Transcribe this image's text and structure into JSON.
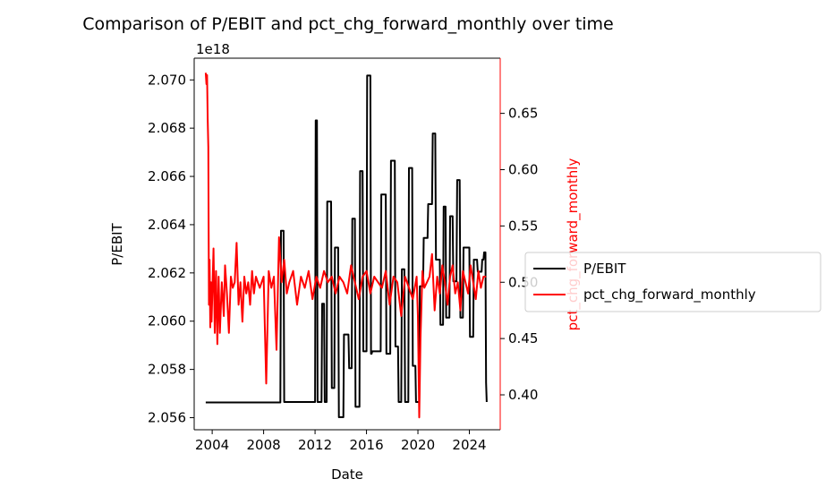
{
  "chart_data": {
    "type": "line",
    "title": "Comparison of P/EBIT and pct_chg_forward_monthly over time",
    "xlabel": "Date",
    "ylabel_left": "P/EBIT",
    "ylabel_right": "pct_chg_forward_monthly",
    "left_offset_label": "1e18",
    "x_ticks": [
      "2004",
      "2008",
      "2012",
      "2016",
      "2020",
      "2024"
    ],
    "y_left_ticks": [
      "2.056",
      "2.058",
      "2.060",
      "2.062",
      "2.064",
      "2.066",
      "2.068",
      "2.070"
    ],
    "y_right_ticks": [
      "0.40",
      "0.45",
      "0.50",
      "0.55",
      "0.60",
      "0.65"
    ],
    "xlim": [
      2002.6,
      2026.4
    ],
    "ylim_left": [
      2.0555,
      2.0709
    ],
    "ylim_right": [
      0.369,
      0.699
    ],
    "legend_position": "center-right, outside axes",
    "legend": [
      {
        "label": "P/EBIT",
        "color": "#000000"
      },
      {
        "label": "pct_chg_forward_monthly",
        "color": "#ff0000"
      }
    ],
    "series": [
      {
        "name": "P/EBIT",
        "axis": "left",
        "color": "#000000",
        "x": [
          2003.5,
          2009.3,
          2009.35,
          2009.55,
          2009.6,
          2012.0,
          2012.05,
          2012.15,
          2012.2,
          2012.5,
          2012.55,
          2012.7,
          2012.75,
          2012.9,
          2012.95,
          2013.25,
          2013.3,
          2013.5,
          2013.55,
          2013.8,
          2013.85,
          2014.2,
          2014.25,
          2014.6,
          2014.65,
          2014.85,
          2014.9,
          2015.1,
          2015.15,
          2015.45,
          2015.5,
          2015.7,
          2015.75,
          2016.0,
          2016.05,
          2016.3,
          2016.35,
          2016.4,
          2016.45,
          2017.1,
          2017.15,
          2017.5,
          2017.55,
          2017.85,
          2017.9,
          2018.2,
          2018.25,
          2018.45,
          2018.5,
          2018.7,
          2018.75,
          2018.95,
          2019.0,
          2019.25,
          2019.3,
          2019.55,
          2019.6,
          2019.8,
          2019.85,
          2020.1,
          2020.15,
          2020.4,
          2020.45,
          2020.75,
          2020.8,
          2021.1,
          2021.15,
          2021.35,
          2021.4,
          2021.7,
          2021.75,
          2021.95,
          2022.0,
          2022.15,
          2022.2,
          2022.45,
          2022.5,
          2022.7,
          2022.75,
          2023.0,
          2023.05,
          2023.25,
          2023.3,
          2023.5,
          2023.55,
          2023.7,
          2023.75,
          2024.0,
          2024.05,
          2024.3,
          2024.35,
          2024.6,
          2024.65,
          2024.95,
          2025.0,
          2025.1,
          2025.15,
          2025.25,
          2025.3,
          2025.35
        ],
        "values": [
          2.05663,
          2.05663,
          2.06375,
          2.06375,
          2.05665,
          2.05665,
          2.06832,
          2.06832,
          2.05665,
          2.05665,
          2.06072,
          2.06072,
          2.05665,
          2.05665,
          2.06496,
          2.06496,
          2.05723,
          2.05723,
          2.06305,
          2.06305,
          2.05602,
          2.05602,
          2.05945,
          2.05945,
          2.05805,
          2.05805,
          2.06425,
          2.06425,
          2.05645,
          2.05645,
          2.06622,
          2.06622,
          2.05875,
          2.05875,
          2.07018,
          2.07018,
          2.05865,
          2.05865,
          2.05875,
          2.05875,
          2.06525,
          2.06525,
          2.05865,
          2.05865,
          2.06665,
          2.06665,
          2.05895,
          2.05895,
          2.05665,
          2.05665,
          2.06215,
          2.06215,
          2.05665,
          2.05665,
          2.06635,
          2.06635,
          2.05815,
          2.05815,
          2.05665,
          2.05665,
          2.06145,
          2.06145,
          2.06345,
          2.06345,
          2.06485,
          2.06485,
          2.06778,
          2.06778,
          2.06255,
          2.06255,
          2.05985,
          2.05985,
          2.06475,
          2.06475,
          2.06015,
          2.06015,
          2.06435,
          2.06435,
          2.06165,
          2.06165,
          2.06585,
          2.06585,
          2.06015,
          2.06015,
          2.06305,
          2.06305,
          2.06305,
          2.06305,
          2.05935,
          2.05935,
          2.06255,
          2.06255,
          2.06205,
          2.06205,
          2.06255,
          2.06255,
          2.06285,
          2.06285,
          2.05745,
          2.05665
        ]
      },
      {
        "name": "pct_chg_forward_monthly",
        "axis": "right",
        "color": "#ff0000",
        "x": [
          2003.5,
          2003.55,
          2003.6,
          2003.65,
          2003.7,
          2003.75,
          2003.8,
          2003.85,
          2003.9,
          2003.95,
          2004.0,
          2004.1,
          2004.2,
          2004.3,
          2004.4,
          2004.5,
          2004.6,
          2004.75,
          2004.9,
          2005.0,
          2005.15,
          2005.3,
          2005.45,
          2005.6,
          2005.75,
          2005.9,
          2006.05,
          2006.2,
          2006.35,
          2006.5,
          2006.65,
          2006.8,
          2006.95,
          2007.1,
          2007.25,
          2007.4,
          2007.55,
          2007.7,
          2007.85,
          2008.0,
          2008.2,
          2008.4,
          2008.6,
          2008.8,
          2009.0,
          2009.2,
          2009.4,
          2009.6,
          2009.8,
          2010.0,
          2010.3,
          2010.6,
          2010.9,
          2011.2,
          2011.5,
          2011.8,
          2012.1,
          2012.4,
          2012.7,
          2013.0,
          2013.3,
          2013.6,
          2013.9,
          2014.2,
          2014.5,
          2014.8,
          2015.1,
          2015.4,
          2015.7,
          2016.0,
          2016.3,
          2016.6,
          2016.9,
          2017.2,
          2017.5,
          2017.8,
          2018.1,
          2018.4,
          2018.7,
          2019.0,
          2019.3,
          2019.6,
          2019.9,
          2020.0,
          2020.1,
          2020.2,
          2020.35,
          2020.5,
          2020.7,
          2020.9,
          2021.1,
          2021.3,
          2021.5,
          2021.7,
          2021.9,
          2022.1,
          2022.3,
          2022.5,
          2022.7,
          2022.9,
          2023.1,
          2023.3,
          2023.5,
          2023.7,
          2023.9,
          2024.1,
          2024.3,
          2024.5,
          2024.7,
          2024.9,
          2025.1,
          2025.3
        ],
        "values": [
          0.686,
          0.676,
          0.684,
          0.645,
          0.62,
          0.48,
          0.52,
          0.46,
          0.5,
          0.465,
          0.485,
          0.53,
          0.455,
          0.51,
          0.445,
          0.505,
          0.455,
          0.5,
          0.47,
          0.515,
          0.49,
          0.455,
          0.505,
          0.495,
          0.5,
          0.535,
          0.48,
          0.5,
          0.465,
          0.505,
          0.49,
          0.5,
          0.48,
          0.51,
          0.49,
          0.505,
          0.5,
          0.495,
          0.5,
          0.505,
          0.41,
          0.51,
          0.495,
          0.505,
          0.44,
          0.54,
          0.5,
          0.52,
          0.49,
          0.5,
          0.51,
          0.48,
          0.505,
          0.495,
          0.51,
          0.485,
          0.505,
          0.495,
          0.51,
          0.5,
          0.505,
          0.49,
          0.505,
          0.5,
          0.49,
          0.515,
          0.5,
          0.485,
          0.505,
          0.51,
          0.49,
          0.505,
          0.5,
          0.495,
          0.51,
          0.48,
          0.505,
          0.5,
          0.47,
          0.505,
          0.495,
          0.485,
          0.505,
          0.47,
          0.38,
          0.45,
          0.51,
          0.495,
          0.5,
          0.505,
          0.525,
          0.475,
          0.505,
          0.49,
          0.515,
          0.5,
          0.48,
          0.505,
          0.515,
          0.49,
          0.5,
          0.475,
          0.51,
          0.5,
          0.49,
          0.515,
          0.5,
          0.485,
          0.51,
          0.495,
          0.505,
          0.505
        ]
      }
    ]
  }
}
